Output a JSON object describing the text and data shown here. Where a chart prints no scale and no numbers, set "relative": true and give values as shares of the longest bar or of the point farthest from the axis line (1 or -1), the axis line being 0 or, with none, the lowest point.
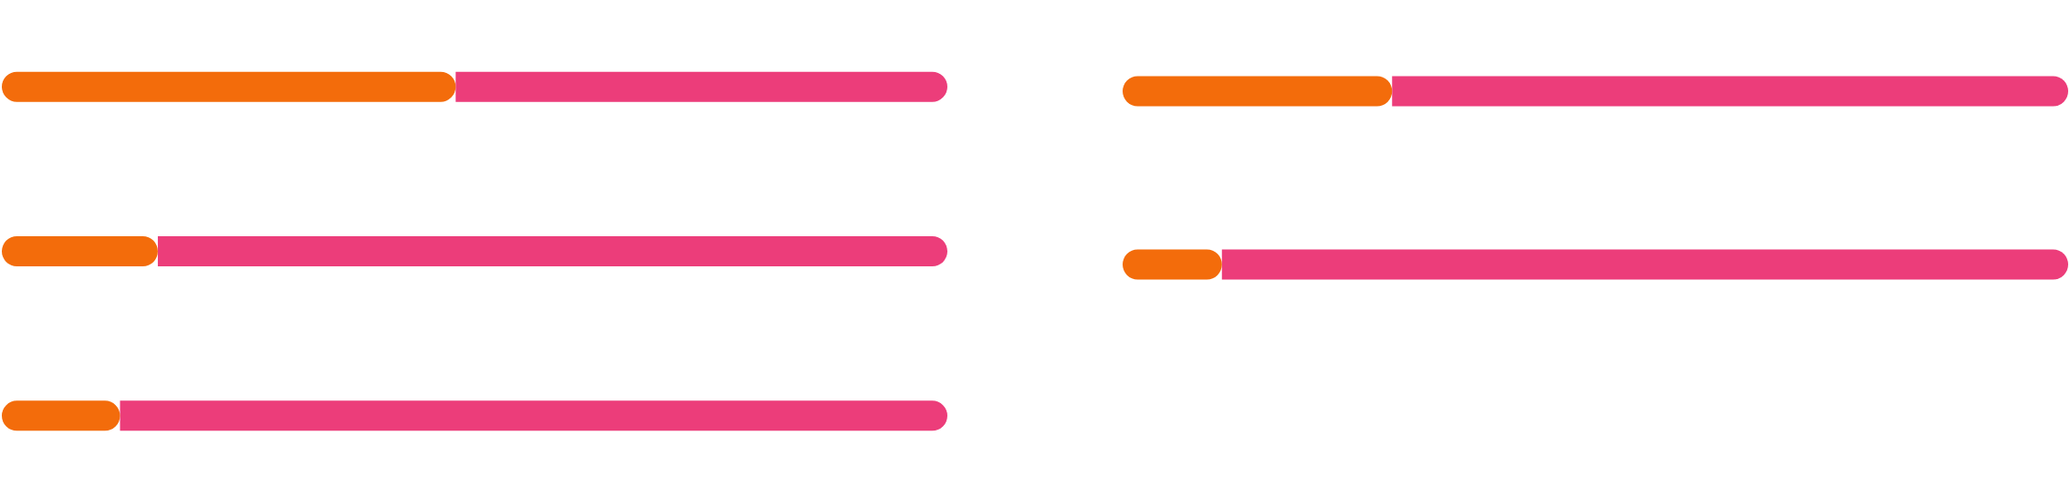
{
  "chart_data": [
    {
      "type": "bar",
      "orientation": "horizontal",
      "stacked": true,
      "relative": true,
      "categories": [
        null,
        null,
        null
      ],
      "series": [
        {
          "color": "#f36c0b",
          "values": [
            0.48,
            0.165,
            0.125
          ]
        },
        {
          "color": "#ec3d7a",
          "values": [
            0.52,
            0.835,
            0.875
          ]
        }
      ]
    },
    {
      "type": "bar",
      "orientation": "horizontal",
      "stacked": true,
      "relative": true,
      "categories": [
        null,
        null
      ],
      "series": [
        {
          "color": "#f36c0b",
          "values": [
            0.285,
            0.105
          ]
        },
        {
          "color": "#ec3d7a",
          "values": [
            0.715,
            0.895
          ]
        }
      ]
    }
  ]
}
